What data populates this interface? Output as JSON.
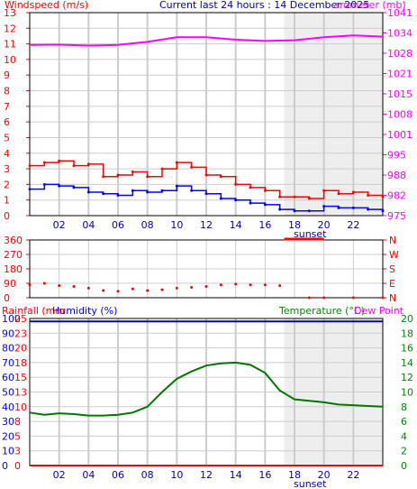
{
  "header": {
    "windspeed_label": "Windspeed (m/s)",
    "title": "Current last 24 hours : 14 December 2025",
    "barometer_label": "arometer (mb)"
  },
  "footer_labels": {
    "sunset_top": "sunset",
    "sunset_bottom": "sunset"
  },
  "lower_header": {
    "rainfall_label": "Rainfall (mm",
    "humidity_label": "Humidity (%)",
    "temperature_label": "Temperature (°C)",
    "dewpoint_label": "Dew Point"
  },
  "colors": {
    "windspeed": "#ff0000",
    "gust": "#ff0000",
    "wind_avg": "#0000ff",
    "barometer": "#ff00ff",
    "direction": "#ff0000",
    "humidity": "#0000aa",
    "temperature": "#007700",
    "rainfall": "#ff0000",
    "label_blue": "#0000ff",
    "label_green": "#008800",
    "grid": "#cccccc",
    "sunset_band": "#eeeeee"
  },
  "chart_data": [
    {
      "type": "line",
      "name": "wind-barometer",
      "x_ticks": [
        "02",
        "04",
        "06",
        "08",
        "10",
        "12",
        "14",
        "16",
        "18",
        "20",
        "22"
      ],
      "x_range": [
        0,
        24
      ],
      "left_axis": {
        "label": "Windspeed (m/s)",
        "ylim": [
          0,
          13
        ],
        "ticks": [
          "0",
          "1",
          "2",
          "3",
          "4",
          "5",
          "6",
          "7",
          "8",
          "9",
          "10",
          "11",
          "12",
          "13"
        ]
      },
      "right_axis": {
        "label": "arometer (mb)",
        "ticks": [
          "975",
          "982",
          "988",
          "995",
          "1001",
          "1008",
          "1015",
          "1021",
          "1028",
          "1034",
          "1041"
        ]
      },
      "barometer": {
        "x": [
          0,
          2,
          4,
          6,
          8,
          10,
          12,
          14,
          16,
          18,
          20,
          22,
          24
        ],
        "y": [
          1030.5,
          1030.6,
          1030.3,
          1030.5,
          1031.5,
          1033.0,
          1033.0,
          1032.2,
          1031.8,
          1032.0,
          1033.0,
          1033.6,
          1033.2
        ]
      },
      "gust": {
        "x": [
          0,
          1,
          2,
          3,
          4,
          5,
          6,
          7,
          8,
          9,
          10,
          11,
          12,
          13,
          14,
          15,
          16,
          17,
          18,
          19,
          20,
          21,
          22,
          23,
          24
        ],
        "y": [
          3.2,
          3.4,
          3.5,
          3.2,
          3.3,
          2.5,
          2.6,
          2.8,
          2.5,
          3.0,
          3.4,
          3.1,
          2.6,
          2.5,
          2.0,
          1.8,
          1.6,
          1.2,
          1.2,
          1.1,
          1.6,
          1.4,
          1.5,
          1.3,
          1.2
        ]
      },
      "wind_avg": {
        "x": [
          0,
          1,
          2,
          3,
          4,
          5,
          6,
          7,
          8,
          9,
          10,
          11,
          12,
          13,
          14,
          15,
          16,
          17,
          18,
          19,
          20,
          21,
          22,
          23,
          24
        ],
        "y": [
          1.7,
          2.0,
          1.9,
          1.8,
          1.5,
          1.4,
          1.3,
          1.6,
          1.5,
          1.6,
          1.9,
          1.6,
          1.4,
          1.1,
          1.0,
          0.8,
          0.7,
          0.4,
          0.3,
          0.3,
          0.6,
          0.5,
          0.5,
          0.4,
          0.3
        ]
      }
    },
    {
      "type": "scatter",
      "name": "wind-direction",
      "left_ticks": [
        "360",
        "270",
        "180",
        "90",
        "0"
      ],
      "right_ticks": [
        "N",
        "W",
        "S",
        "E",
        "N"
      ],
      "ylim": [
        0,
        360
      ],
      "x": [
        0,
        1,
        2,
        3,
        4,
        5,
        6,
        7,
        8,
        9,
        10,
        11,
        12,
        13,
        14,
        15,
        16,
        17,
        19,
        20,
        22,
        24
      ],
      "y": [
        80,
        90,
        75,
        70,
        60,
        45,
        40,
        55,
        45,
        50,
        60,
        65,
        70,
        80,
        85,
        80,
        80,
        75,
        0,
        0,
        0,
        0
      ]
    },
    {
      "type": "line",
      "name": "temperature-humidity",
      "x_ticks": [
        "02",
        "04",
        "06",
        "08",
        "10",
        "12",
        "14",
        "16",
        "18",
        "20",
        "22"
      ],
      "x_range": [
        0,
        24
      ],
      "left_axis_humidity": [
        "0",
        "10",
        "20",
        "30",
        "40",
        "50",
        "60",
        "70",
        "80",
        "90",
        "100"
      ],
      "left_axis_rain": [
        "0",
        "3",
        "5",
        "8",
        "10",
        "13",
        "15",
        "18",
        "20",
        "23",
        "25"
      ],
      "right_axis_temp": [
        "0",
        "2",
        "4",
        "6",
        "8",
        "10",
        "12",
        "14",
        "16",
        "18",
        "20"
      ],
      "temp_ylim": [
        0,
        20
      ],
      "temperature": {
        "x": [
          0,
          1,
          2,
          3,
          4,
          5,
          6,
          7,
          8,
          9,
          10,
          11,
          12,
          13,
          14,
          15,
          16,
          17,
          18,
          19,
          20,
          21,
          22,
          23,
          24
        ],
        "y": [
          7.2,
          6.9,
          7.1,
          7.0,
          6.8,
          6.8,
          6.9,
          7.2,
          8.0,
          10.0,
          11.8,
          12.8,
          13.6,
          13.9,
          14.0,
          13.7,
          12.6,
          10.2,
          9.0,
          8.8,
          8.6,
          8.3,
          8.2,
          8.1,
          8.0
        ]
      },
      "humidity": {
        "x": [
          0,
          24
        ],
        "y": [
          98,
          98
        ]
      },
      "rainfall": {
        "x": [
          0,
          24
        ],
        "y": [
          0,
          0
        ]
      }
    }
  ]
}
